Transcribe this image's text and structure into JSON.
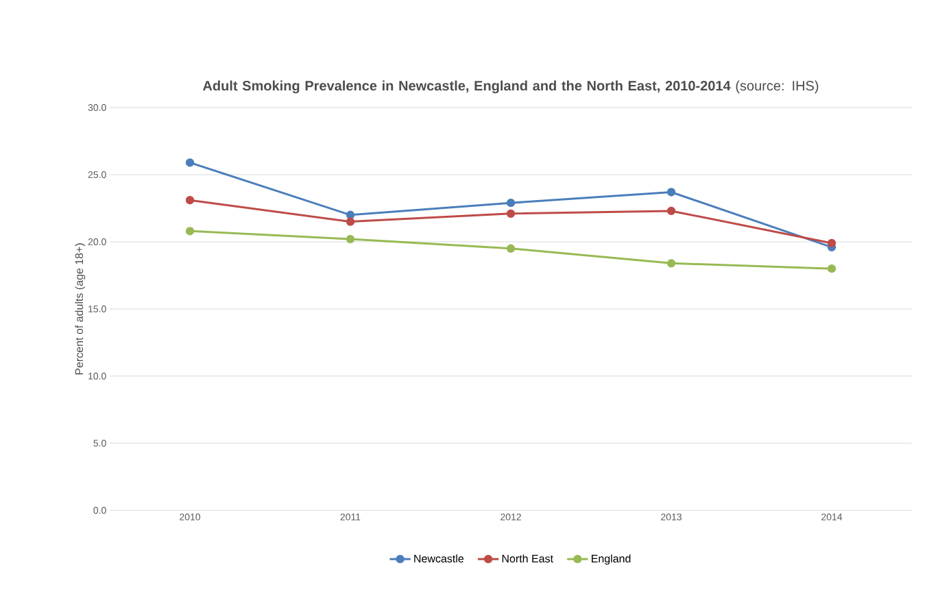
{
  "chart_data": {
    "type": "line",
    "title": "**Adult Smoking Prevalence in Newcastle, England and the North East, 2010-2014** (source: IHS)",
    "ylabel": "Percent of adults (age 18+)",
    "categories": [
      "2010",
      "2011",
      "2012",
      "2013",
      "2014"
    ],
    "series": [
      {
        "name": "Newcastle",
        "color": "#4a7ebb",
        "values": [
          25.9,
          22.0,
          22.9,
          23.7,
          19.6
        ]
      },
      {
        "name": "North East",
        "color": "#be4b48",
        "values": [
          23.1,
          21.5,
          22.1,
          22.3,
          19.9
        ]
      },
      {
        "name": "England",
        "color": "#98b954",
        "values": [
          20.8,
          20.2,
          19.5,
          18.4,
          18.0
        ]
      }
    ],
    "ylim": [
      0,
      30
    ],
    "yticks": [
      {
        "value": 0,
        "label": "0.0"
      },
      {
        "value": 5,
        "label": "5.0"
      },
      {
        "value": 10,
        "label": "10.0"
      },
      {
        "value": 15,
        "label": "15.0"
      },
      {
        "value": 20,
        "label": "20.0"
      },
      {
        "value": 25,
        "label": "25.0"
      },
      {
        "value": 30,
        "label": "30.0"
      }
    ],
    "grid": "y",
    "legend": "bottom",
    "marker": "circle",
    "line_style": "solid"
  }
}
